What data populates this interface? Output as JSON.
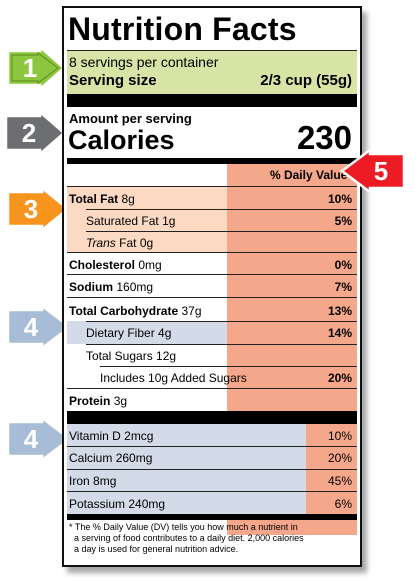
{
  "title": "Nutrition Facts",
  "servings_per_container": "8 servings per container",
  "serving_size_label": "Serving size",
  "serving_size_value": "2/3 cup (55g)",
  "amount_per_serving": "Amount per serving",
  "calories_label": "Calories",
  "calories_value": "230",
  "daily_value_header": "% Daily Value*",
  "nutrients": [
    {
      "name": "Total Fat",
      "amount": "8g",
      "dv": "10%"
    },
    {
      "name": "Saturated Fat",
      "amount": "1g",
      "dv": "5%"
    },
    {
      "name": "Trans",
      "name_rest": "Fat",
      "amount": "0g",
      "dv": ""
    },
    {
      "name": "Cholesterol",
      "amount": "0mg",
      "dv": "0%"
    },
    {
      "name": "Sodium",
      "amount": "160mg",
      "dv": "7%"
    },
    {
      "name": "Total Carbohydrate",
      "amount": "37g",
      "dv": "13%"
    },
    {
      "name": "Dietary Fiber",
      "amount": "4g",
      "dv": "14%"
    },
    {
      "name": "Total Sugars",
      "amount": "12g",
      "dv": ""
    },
    {
      "name": "Includes 10g Added Sugars",
      "amount": "",
      "dv": "20%"
    },
    {
      "name": "Protein",
      "amount": "3g",
      "dv": ""
    }
  ],
  "vitamins": [
    {
      "name": "Vitamin D",
      "amount": "2mcg",
      "dv": "10%"
    },
    {
      "name": "Calcium",
      "amount": "260mg",
      "dv": "20%"
    },
    {
      "name": "Iron",
      "amount": "8mg",
      "dv": "45%"
    },
    {
      "name": "Potassium",
      "amount": "240mg",
      "dv": "6%"
    }
  ],
  "footnote": "* The % Daily Value (DV) tells you how much a nutrient in a serving of food contributes to a daily diet. 2,000 calories a day is used for general nutrition advice.",
  "footnote_lines": [
    "* The % Daily Value (DV) tells you how much a nutrient in",
    "a serving of food contributes to a daily diet. 2,000 calories",
    "a day is used for general nutrition advice."
  ],
  "callouts": [
    {
      "number": "1",
      "color": "#8dc63f"
    },
    {
      "number": "2",
      "color": "#6d6e71"
    },
    {
      "number": "3",
      "color": "#f7941d"
    },
    {
      "number": "4",
      "color": "#a7bcd6"
    },
    {
      "number": "5",
      "color": "#ed1c24"
    },
    {
      "number": "4",
      "color": "#a7bcd6"
    }
  ],
  "colors": {
    "serving_band": "#d7e4a6",
    "dv_column": "#f4a78a",
    "fat_band": "#fbd9c3",
    "fiber_band": "#d3dbe8",
    "vitamin_band": "#d3dbe8"
  }
}
